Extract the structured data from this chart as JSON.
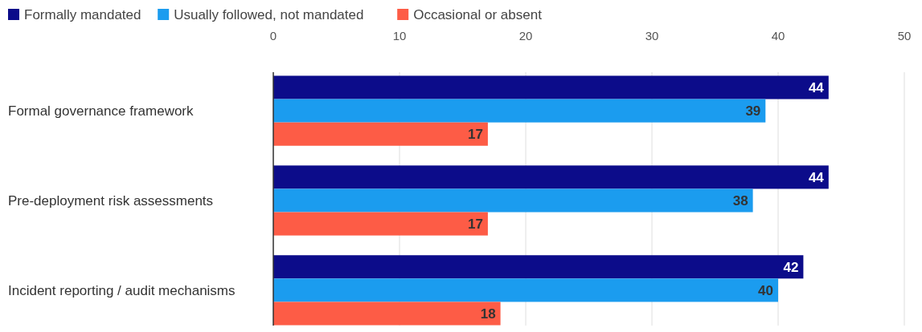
{
  "chart_data": {
    "type": "bar",
    "orientation": "horizontal",
    "categories": [
      "Formal governance framework",
      "Pre-deployment risk assessments",
      "Incident reporting / audit mechanisms"
    ],
    "series": [
      {
        "name": "Formally mandated",
        "color": "#0c0c8a",
        "values": [
          44,
          44,
          42
        ]
      },
      {
        "name": "Usually followed, not mandated",
        "color": "#1b9cef",
        "values": [
          39,
          38,
          40
        ]
      },
      {
        "name": "Occasional or absent",
        "color": "#fd5c46",
        "values": [
          17,
          17,
          18
        ]
      }
    ],
    "xlim": [
      0,
      50
    ],
    "xticks": [
      0,
      10,
      20,
      30,
      40,
      50
    ],
    "grid": "x",
    "legend": "top left",
    "data_labels": true
  }
}
